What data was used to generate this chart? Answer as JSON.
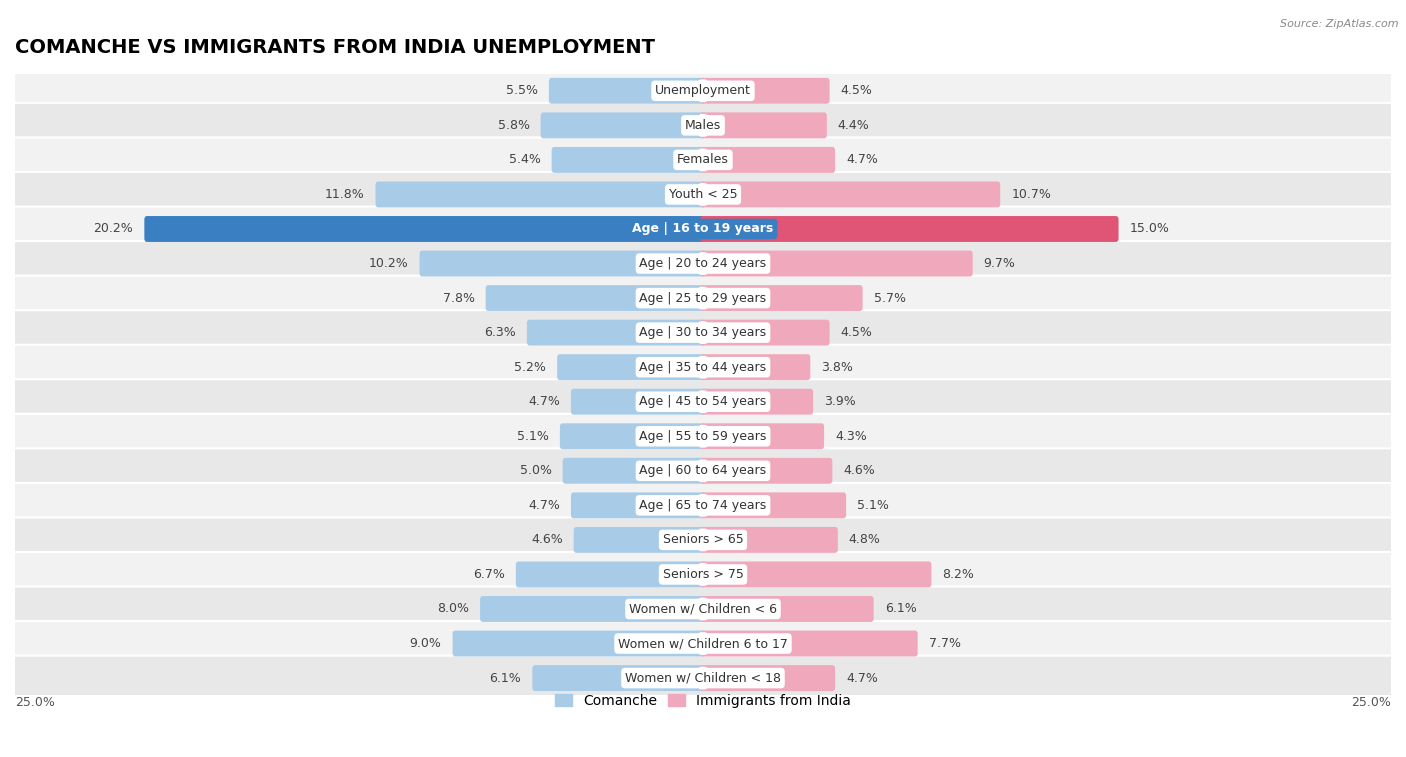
{
  "title": "COMANCHE VS IMMIGRANTS FROM INDIA UNEMPLOYMENT",
  "source": "Source: ZipAtlas.com",
  "categories": [
    "Unemployment",
    "Males",
    "Females",
    "Youth < 25",
    "Age | 16 to 19 years",
    "Age | 20 to 24 years",
    "Age | 25 to 29 years",
    "Age | 30 to 34 years",
    "Age | 35 to 44 years",
    "Age | 45 to 54 years",
    "Age | 55 to 59 years",
    "Age | 60 to 64 years",
    "Age | 65 to 74 years",
    "Seniors > 65",
    "Seniors > 75",
    "Women w/ Children < 6",
    "Women w/ Children 6 to 17",
    "Women w/ Children < 18"
  ],
  "comanche_values": [
    5.5,
    5.8,
    5.4,
    11.8,
    20.2,
    10.2,
    7.8,
    6.3,
    5.2,
    4.7,
    5.1,
    5.0,
    4.7,
    4.6,
    6.7,
    8.0,
    9.0,
    6.1
  ],
  "india_values": [
    4.5,
    4.4,
    4.7,
    10.7,
    15.0,
    9.7,
    5.7,
    4.5,
    3.8,
    3.9,
    4.3,
    4.6,
    5.1,
    4.8,
    8.2,
    6.1,
    7.7,
    4.7
  ],
  "comanche_color": "#a8cce8",
  "india_color": "#f0a8bc",
  "comanche_highlight_color": "#3a7fc1",
  "india_highlight_color": "#e05575",
  "highlight_index": 4,
  "xlim": 25.0,
  "legend_label_left": "Comanche",
  "legend_label_right": "Immigrants from India",
  "row_bg_light": "#f2f2f2",
  "row_bg_dark": "#e8e8e8",
  "title_fontsize": 14,
  "label_fontsize": 9,
  "value_fontsize": 9
}
